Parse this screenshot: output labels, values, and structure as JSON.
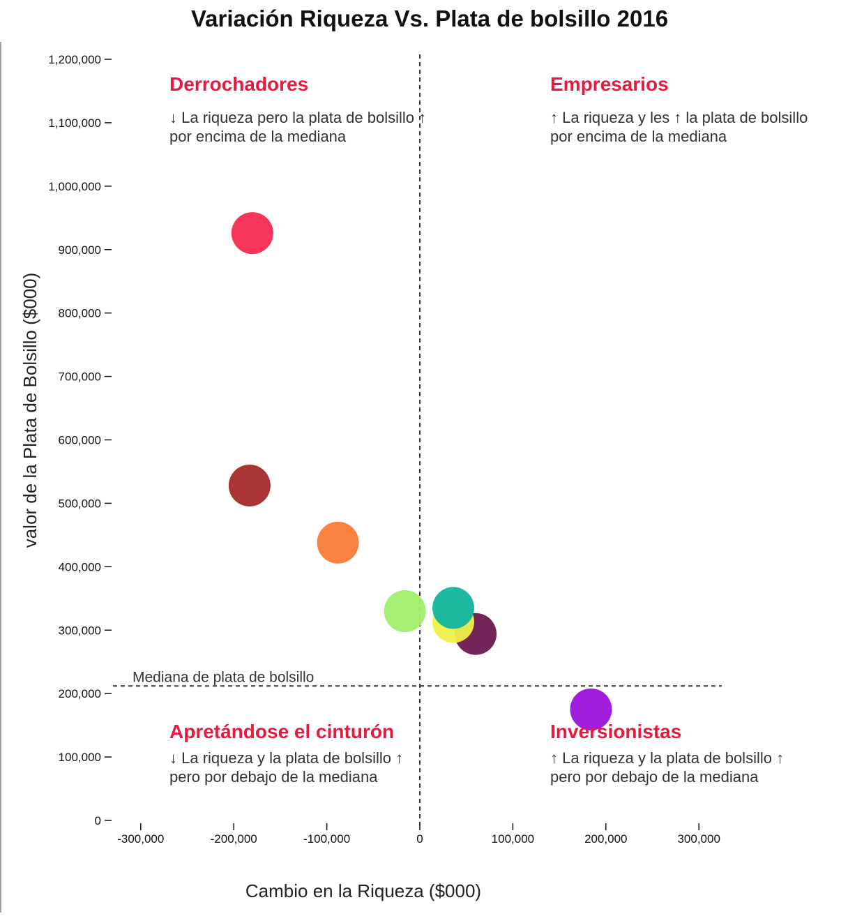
{
  "chart_data": {
    "type": "scatter",
    "title": "Variación Riqueza Vs. Plata de bolsillo 2016",
    "xlabel": "Cambio en la Riqueza ($000)",
    "ylabel": "valor de la Plata de Bolsillo ($000)",
    "xlim": [
      -330000,
      330000
    ],
    "ylim": [
      0,
      1200000
    ],
    "x_ticks": [
      -300000,
      -200000,
      -100000,
      0,
      100000,
      200000,
      300000
    ],
    "x_tick_labels": [
      "-300,000",
      "-200,000",
      "-100,000",
      "0",
      "100,000",
      "200,000",
      "300,000"
    ],
    "y_ticks": [
      0,
      100000,
      200000,
      300000,
      400000,
      500000,
      600000,
      700000,
      800000,
      900000,
      1000000,
      1100000,
      1200000
    ],
    "y_tick_labels": [
      "0",
      "100,000",
      "200,000",
      "300,000",
      "400,000",
      "500,000",
      "600,000",
      "700,000",
      "800,000",
      "900,000",
      "1,000,000",
      "1,100,000",
      "1,200,000"
    ],
    "median": {
      "label": "Mediana de plata de bolsillo",
      "y": 212000,
      "x_vertical": 0
    },
    "points": [
      {
        "x": -180000,
        "y": 926000,
        "color": "#f42b51"
      },
      {
        "x": -183000,
        "y": 528000,
        "color": "#a52a2a"
      },
      {
        "x": -88000,
        "y": 438000,
        "color": "#fa7a35"
      },
      {
        "x": -16000,
        "y": 330000,
        "color": "#a0ee6a"
      },
      {
        "x": 60000,
        "y": 294000,
        "color": "#6e1a4f"
      },
      {
        "x": 36000,
        "y": 313000,
        "color": "#f0f04a"
      },
      {
        "x": 36000,
        "y": 335000,
        "color": "#12b5a0"
      },
      {
        "x": 184000,
        "y": 175000,
        "color": "#9b12d8"
      }
    ],
    "quadrants": [
      {
        "title": "Derrochadores",
        "line1": "↓ La riqueza pero la plata de bolsillo ↑",
        "line2": "por encima de la mediana"
      },
      {
        "title": "Empresarios",
        "line1": "↑ La riqueza y les ↑ la plata de bolsillo",
        "line2": "por encima de la mediana"
      },
      {
        "title": "Apretándose el cinturón",
        "line1": "↓ La riqueza y la plata de bolsillo ↑",
        "line2": "pero por debajo de la mediana"
      },
      {
        "title": "Inversionistas",
        "line1": "↑ La riqueza y la plata de bolsillo ↑",
        "line2": "pero por debajo de la mediana"
      }
    ],
    "colors": {
      "quadrant_title": "#e8193f",
      "guide_line": "#333333"
    }
  }
}
